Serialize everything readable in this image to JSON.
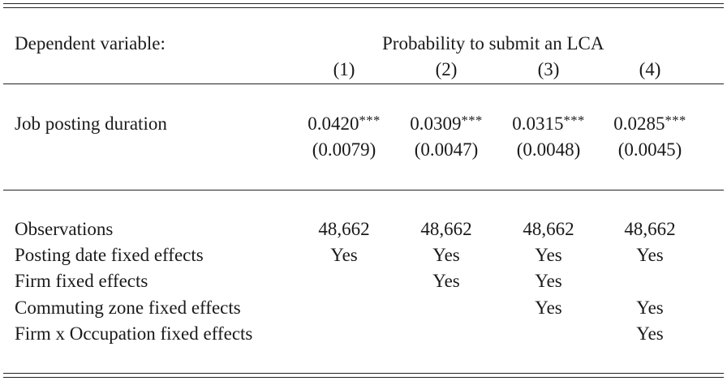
{
  "header": {
    "dependent_variable_label": "Dependent variable:",
    "dependent_variable_name": "Probability to submit an LCA",
    "columns": [
      "(1)",
      "(2)",
      "(3)",
      "(4)"
    ]
  },
  "coefficient_row": {
    "label": "Job posting duration",
    "estimates": [
      "0.0420",
      "0.0309",
      "0.0315",
      "0.0285"
    ],
    "significance": [
      "***",
      "***",
      "***",
      "***"
    ],
    "standard_errors": [
      "(0.0079)",
      "(0.0047)",
      "(0.0048)",
      "(0.0045)"
    ]
  },
  "stats_rows": [
    {
      "label": "Observations",
      "values": [
        "48,662",
        "48,662",
        "48,662",
        "48,662"
      ]
    },
    {
      "label": "Posting date fixed effects",
      "values": [
        "Yes",
        "Yes",
        "Yes",
        "Yes"
      ]
    },
    {
      "label": "Firm fixed effects",
      "values": [
        "",
        "Yes",
        "Yes",
        ""
      ]
    },
    {
      "label": "Commuting zone fixed effects",
      "values": [
        "",
        "",
        "Yes",
        "Yes"
      ]
    },
    {
      "label": "Firm x Occupation fixed effects",
      "values": [
        "",
        "",
        "",
        "Yes"
      ]
    }
  ]
}
